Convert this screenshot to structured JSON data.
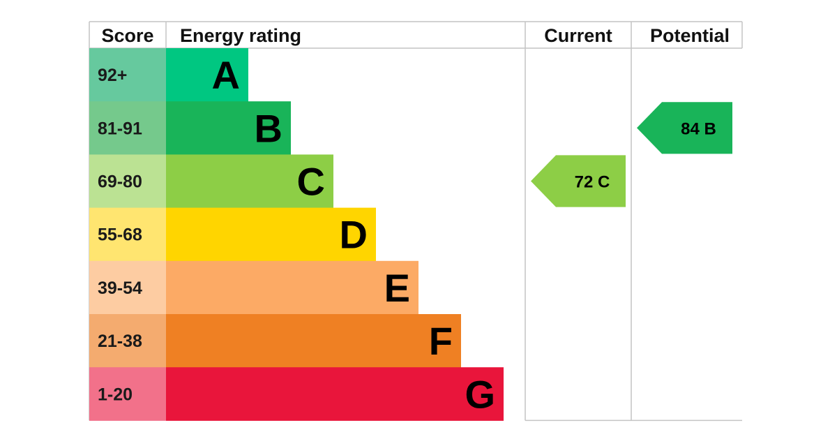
{
  "chart_data": {
    "type": "bar",
    "headers": {
      "score": "Score",
      "rating": "Energy rating",
      "current": "Current",
      "potential": "Potential"
    },
    "bands": [
      {
        "range": "92+",
        "letter": "A",
        "color": "#00c781",
        "score_color": "#66c99e"
      },
      {
        "range": "81-91",
        "letter": "B",
        "color": "#19b459",
        "score_color": "#75c98c"
      },
      {
        "range": "69-80",
        "letter": "C",
        "color": "#8dce46",
        "score_color": "#bbe293"
      },
      {
        "range": "55-68",
        "letter": "D",
        "color": "#ffd500",
        "score_color": "#ffe570"
      },
      {
        "range": "39-54",
        "letter": "E",
        "color": "#fcaa65",
        "score_color": "#fdcca2"
      },
      {
        "range": "21-38",
        "letter": "F",
        "color": "#ef8023",
        "score_color": "#f4ab6f"
      },
      {
        "range": "1-20",
        "letter": "G",
        "color": "#e9153b",
        "score_color": "#f2718a"
      }
    ],
    "current": {
      "value": 72,
      "letter": "C",
      "band_index": 2,
      "color": "#8dce46"
    },
    "potential": {
      "value": 84,
      "letter": "B",
      "band_index": 1,
      "color": "#19b459"
    }
  }
}
